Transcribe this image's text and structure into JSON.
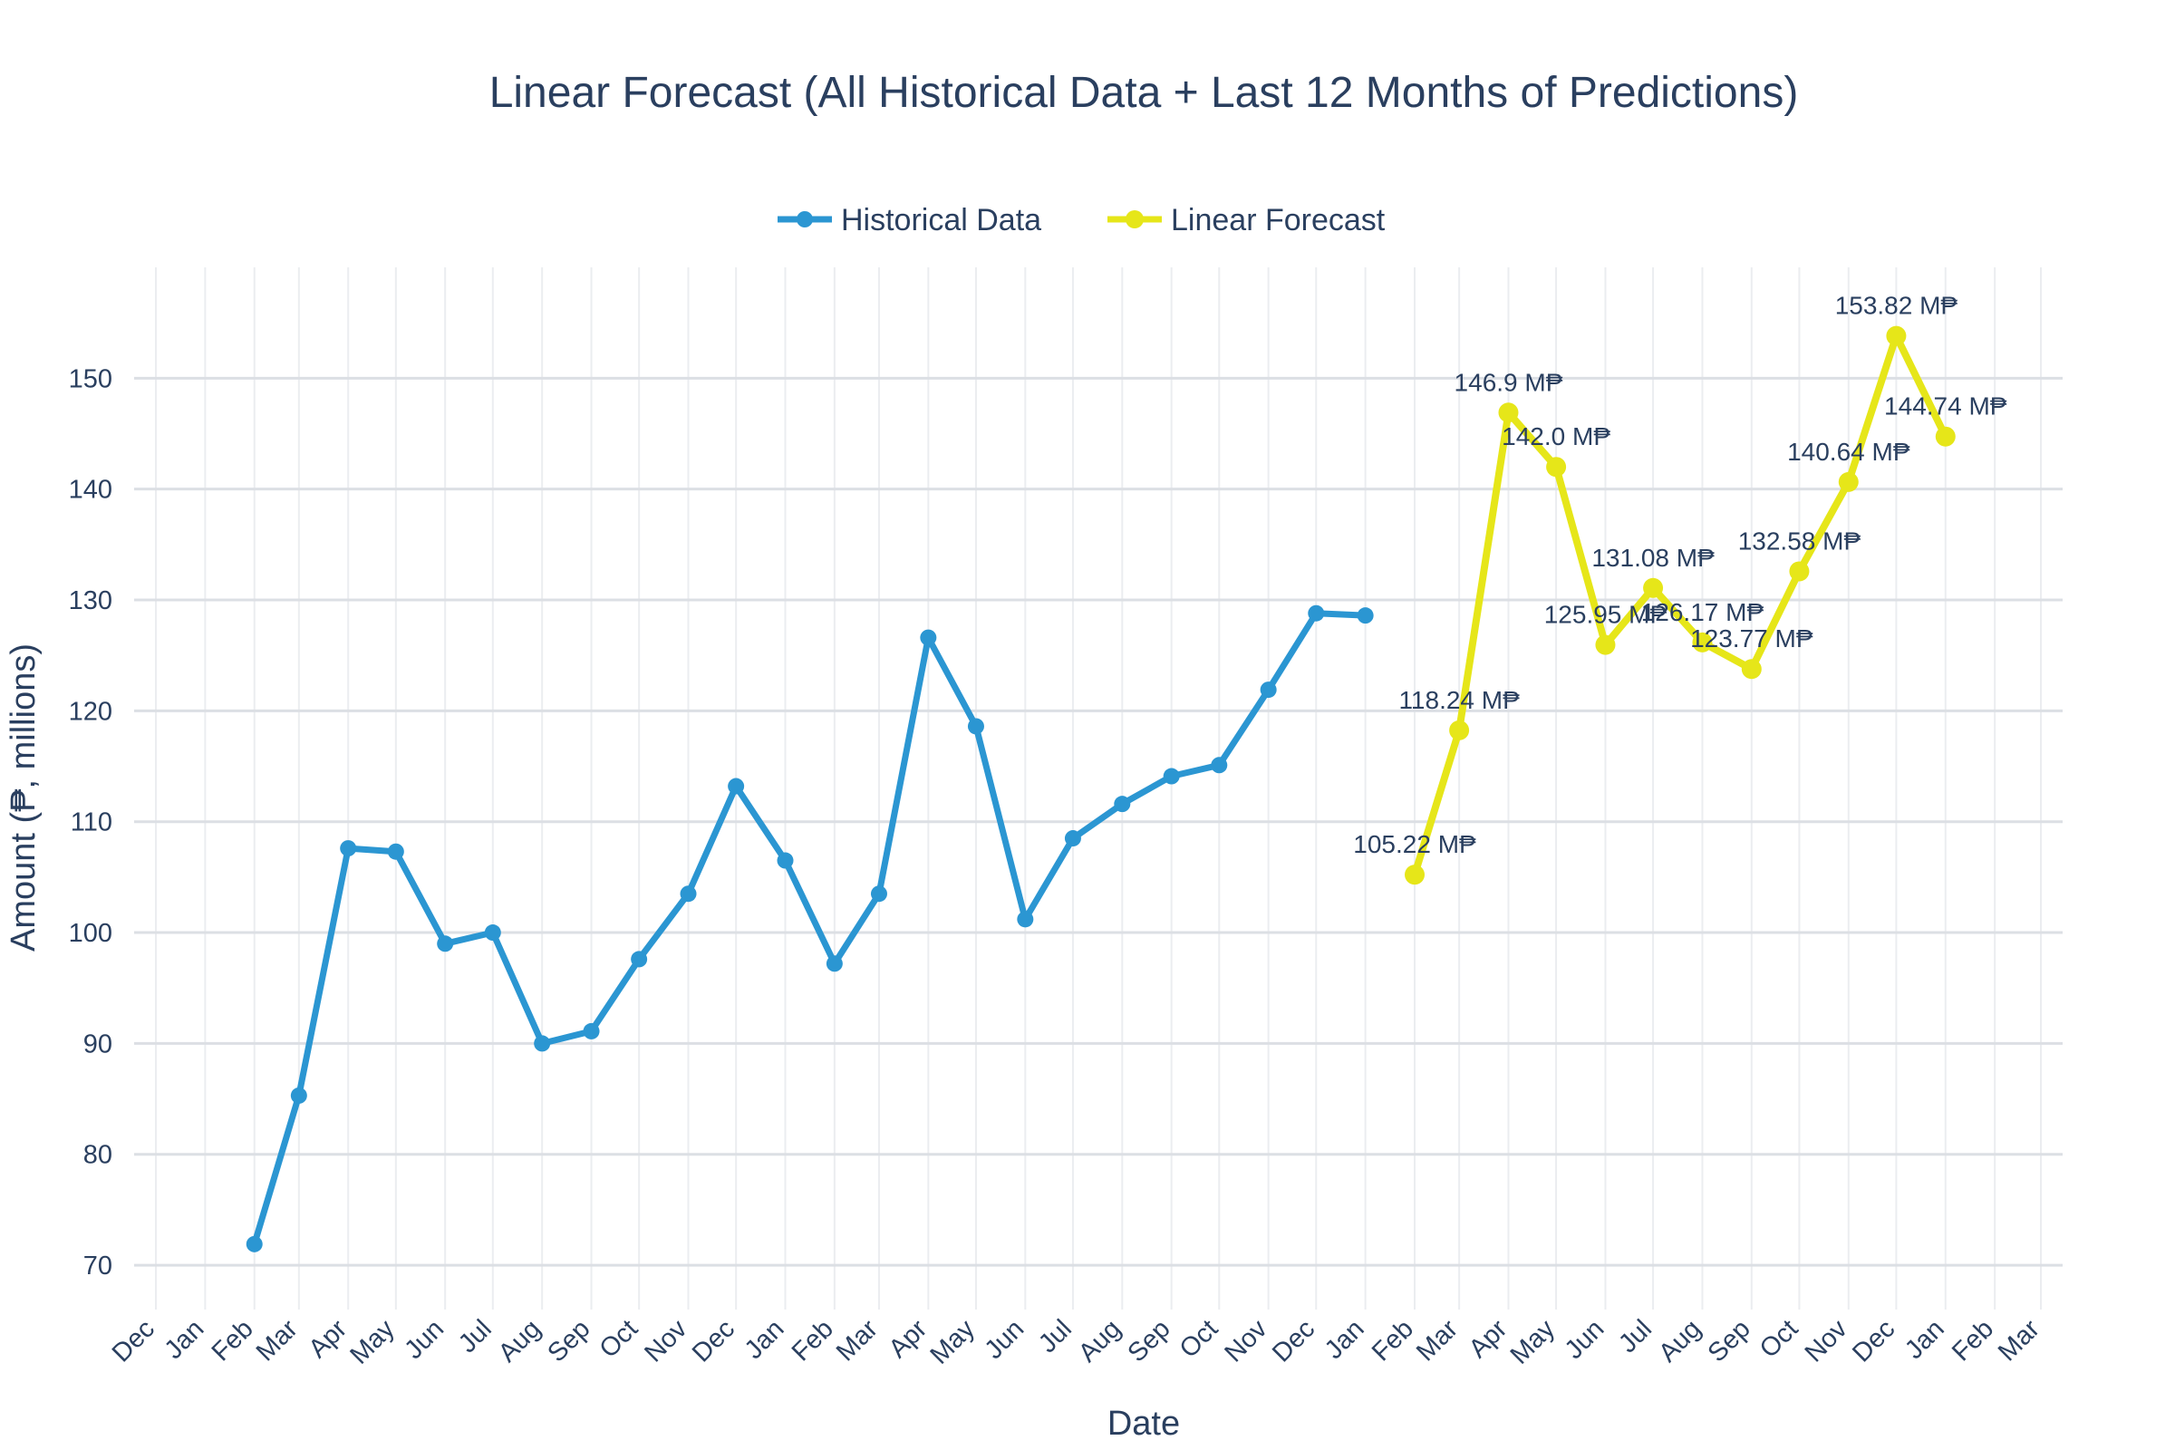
{
  "chart_data": {
    "type": "line",
    "title": "Linear Forecast (All Historical Data + Last 12 Months of Predictions)",
    "xlabel": "Date",
    "ylabel": "Amount (₱, millions)",
    "ylim": [
      66,
      160
    ],
    "yticks": [
      70,
      80,
      90,
      100,
      110,
      120,
      130,
      140,
      150
    ],
    "xlim": [
      "2020-12-01",
      "2024-03-01"
    ],
    "x_ticks": [
      "2020-12-01",
      "2021-01-01",
      "2021-02-01",
      "2021-03-01",
      "2021-04-01",
      "2021-05-01",
      "2021-06-01",
      "2021-07-01",
      "2021-08-01",
      "2021-09-01",
      "2021-10-01",
      "2021-11-01",
      "2021-12-01",
      "2022-01-01",
      "2022-02-01",
      "2022-03-01",
      "2022-04-01",
      "2022-05-01",
      "2022-06-01",
      "2022-07-01",
      "2022-08-01",
      "2022-09-01",
      "2022-10-01",
      "2022-11-01",
      "2022-12-01",
      "2023-01-01",
      "2023-02-01",
      "2023-03-01",
      "2023-04-01",
      "2023-05-01",
      "2023-06-01",
      "2023-07-01",
      "2023-08-01",
      "2023-09-01",
      "2023-10-01",
      "2023-11-01",
      "2023-12-01",
      "2024-01-01",
      "2024-02-01",
      "2024-03-01"
    ],
    "x_tick_labels": [
      "Dec",
      "Jan",
      "Feb",
      "Mar",
      "Apr",
      "May",
      "Jun",
      "Jul",
      "Aug",
      "Sep",
      "Oct",
      "Nov",
      "Dec",
      "Jan",
      "Feb",
      "Mar",
      "Apr",
      "May",
      "Jun",
      "Jul",
      "Aug",
      "Sep",
      "Oct",
      "Nov",
      "Dec",
      "Jan",
      "Feb",
      "Mar",
      "Apr",
      "May",
      "Jun",
      "Jul",
      "Aug",
      "Sep",
      "Oct",
      "Nov",
      "Dec",
      "Jan",
      "Feb",
      "Mar"
    ],
    "grid": true,
    "legend_position": "top-center",
    "series": [
      {
        "name": "Historical Data",
        "color": "#2b96d2",
        "marker": "circle",
        "x": [
          "2021-02-01",
          "2021-03-01",
          "2021-04-01",
          "2021-05-01",
          "2021-06-01",
          "2021-07-01",
          "2021-08-01",
          "2021-09-01",
          "2021-10-01",
          "2021-11-01",
          "2021-12-01",
          "2022-01-01",
          "2022-02-01",
          "2022-03-01",
          "2022-04-01",
          "2022-05-01",
          "2022-06-01",
          "2022-07-01",
          "2022-08-01",
          "2022-09-01",
          "2022-10-01",
          "2022-11-01",
          "2022-12-01",
          "2023-01-01"
        ],
        "values": [
          71.9,
          85.3,
          107.6,
          107.3,
          99.0,
          100.0,
          90.0,
          91.1,
          97.6,
          103.5,
          113.2,
          106.5,
          97.2,
          103.5,
          126.6,
          118.6,
          101.2,
          108.5,
          111.6,
          114.1,
          115.1,
          121.9,
          128.8,
          128.6
        ]
      },
      {
        "name": "Linear Forecast",
        "color": "#e6e619",
        "marker": "circle",
        "x": [
          "2023-02-01",
          "2023-03-01",
          "2023-04-01",
          "2023-05-01",
          "2023-06-01",
          "2023-07-01",
          "2023-08-01",
          "2023-09-01",
          "2023-10-01",
          "2023-11-01",
          "2023-12-01",
          "2024-01-01"
        ],
        "values": [
          105.22,
          118.24,
          146.9,
          142.0,
          125.95,
          131.08,
          126.17,
          123.77,
          132.58,
          140.64,
          153.82,
          144.74
        ],
        "labels": [
          "105.22 M₱",
          "118.24 M₱",
          "146.9 M₱",
          "142.0 M₱",
          "125.95 M₱",
          "131.08 M₱",
          "126.17 M₱",
          "123.77 M₱",
          "132.58 M₱",
          "140.64 M₱",
          "153.82 M₱",
          "144.74 M₱"
        ]
      }
    ]
  }
}
